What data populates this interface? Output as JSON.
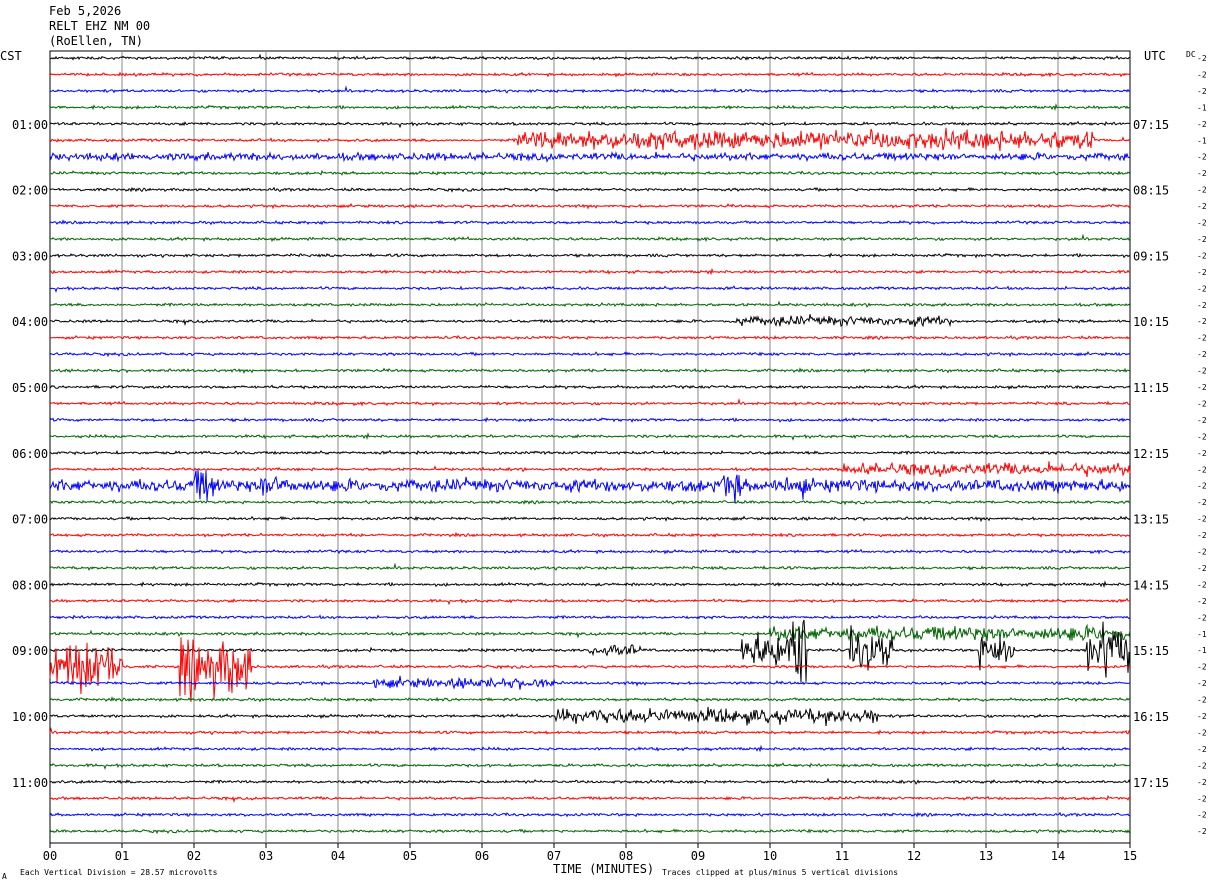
{
  "header": {
    "date": "Feb 5,2026",
    "station": "RELT EHZ NM 00",
    "location": "(RoEllen, TN)"
  },
  "left_tz": "CST",
  "right_tz": "UTC",
  "dc_label": "DC",
  "xlabel": "TIME (MINUTES)",
  "footer_left": "Each Vertical Division =   28.57 microvolts",
  "footer_right": "Traces clipped at plus/minus 5 vertical divisions",
  "corner_mark": "A",
  "colors": [
    "#000000",
    "#ff0000",
    "#0000ff",
    "#006400"
  ],
  "chart_data": {
    "type": "line",
    "title": "RELT EHZ NM 00",
    "xlabel": "TIME (MINUTES)",
    "xlim": [
      0,
      15
    ],
    "x_ticks": [
      "00",
      "01",
      "02",
      "03",
      "04",
      "05",
      "06",
      "07",
      "08",
      "09",
      "10",
      "11",
      "12",
      "13",
      "14",
      "15"
    ],
    "trace_count": 48,
    "traces_per_hour": 4,
    "minutes_per_trace": 15,
    "left_hour_labels": [
      "01:00",
      "02:00",
      "03:00",
      "04:00",
      "05:00",
      "06:00",
      "07:00",
      "08:00",
      "09:00",
      "10:00",
      "11:00"
    ],
    "right_hour_labels": [
      "07:15",
      "08:15",
      "09:15",
      "10:15",
      "11:15",
      "12:15",
      "13:15",
      "14:15",
      "15:15",
      "16:15",
      "17:15"
    ],
    "dc_offsets": [
      "-2",
      "-2",
      "-2",
      "-1",
      "-2",
      "-1",
      "-2",
      "-2",
      "-2",
      "-2",
      "-2",
      "-2",
      "-2",
      "-2",
      "-2",
      "-2",
      "-2",
      "-2",
      "-2",
      "-2",
      "-2",
      "-2",
      "-2",
      "-2",
      "-2",
      "-2",
      "-2",
      "-2",
      "-2",
      "-2",
      "-2",
      "-2",
      "-2",
      "-2",
      "-2",
      "-1",
      "-1",
      "-2",
      "-2",
      "-2",
      "-2",
      "-2",
      "-2",
      "-2",
      "-2",
      "-2",
      "-2",
      "-2"
    ],
    "events": [
      {
        "trace": 5,
        "start": 6.5,
        "end": 14.5,
        "amp": 8
      },
      {
        "trace": 6,
        "start": 0,
        "end": 15,
        "amp": 3
      },
      {
        "trace": 16,
        "start": 9.5,
        "end": 12.5,
        "amp": 4
      },
      {
        "trace": 25,
        "start": 11,
        "end": 15,
        "amp": 5
      },
      {
        "trace": 26,
        "start": 0,
        "end": 15,
        "amp": 5
      },
      {
        "trace": 26,
        "start": 2.0,
        "end": 2.3,
        "amp": 14
      },
      {
        "trace": 26,
        "start": 2.9,
        "end": 3.4,
        "amp": 10
      },
      {
        "trace": 26,
        "start": 9.3,
        "end": 9.6,
        "amp": 12
      },
      {
        "trace": 26,
        "start": 10.2,
        "end": 10.5,
        "amp": 11
      },
      {
        "trace": 35,
        "start": 10.0,
        "end": 15,
        "amp": 6
      },
      {
        "trace": 36,
        "start": 7.5,
        "end": 8.2,
        "amp": 5
      },
      {
        "trace": 36,
        "start": 9.6,
        "end": 10.5,
        "amp": 14
      },
      {
        "trace": 36,
        "start": 10.3,
        "end": 10.5,
        "amp": 34
      },
      {
        "trace": 36,
        "start": 11.1,
        "end": 11.7,
        "amp": 16
      },
      {
        "trace": 36,
        "start": 12.9,
        "end": 13.4,
        "amp": 14
      },
      {
        "trace": 36,
        "start": 14.4,
        "end": 15,
        "amp": 20
      },
      {
        "trace": 37,
        "start": 0,
        "end": 1.0,
        "amp": 20
      },
      {
        "trace": 37,
        "start": 1.8,
        "end": 2.8,
        "amp": 22
      },
      {
        "trace": 38,
        "start": 4.5,
        "end": 7.0,
        "amp": 4
      },
      {
        "trace": 40,
        "start": 7.0,
        "end": 11.5,
        "amp": 6
      }
    ]
  }
}
